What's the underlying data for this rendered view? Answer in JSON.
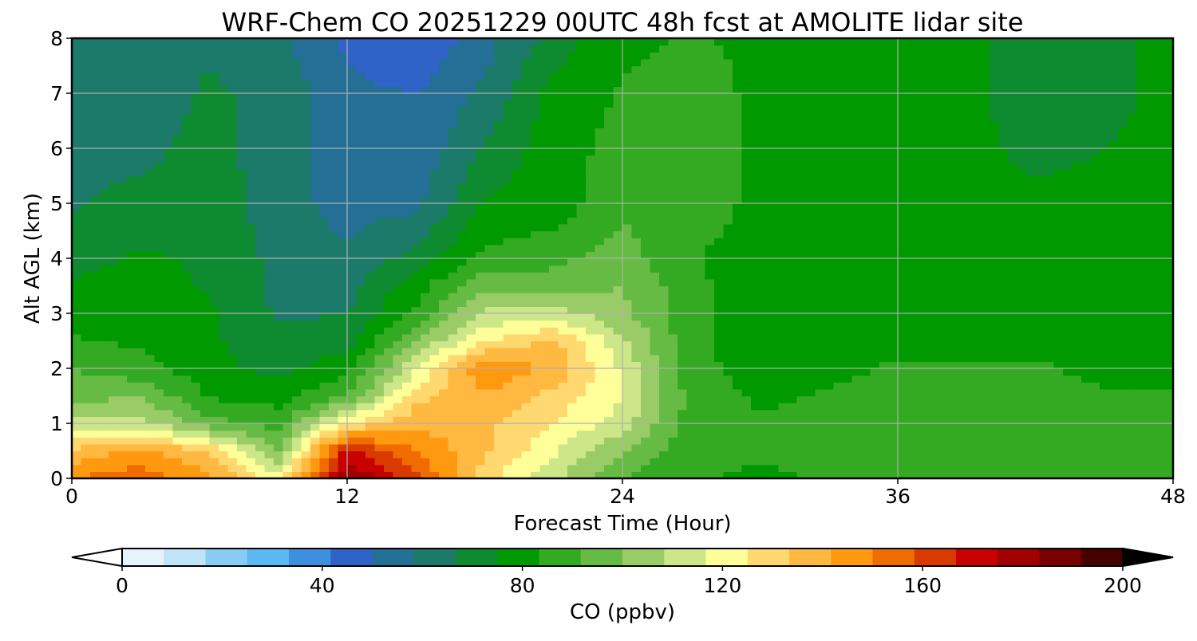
{
  "chart_data": {
    "type": "heatmap",
    "title": "WRF-Chem CO  20251229 00UTC 48h fcst at AMOLITE lidar site",
    "xlabel": "Forecast Time (Hour)",
    "ylabel": "Alt AGL (km)",
    "xlim": [
      0,
      48
    ],
    "ylim": [
      0,
      8
    ],
    "x_ticks": [
      0,
      12,
      24,
      36,
      48
    ],
    "y_ticks": [
      0,
      1,
      2,
      3,
      4,
      5,
      6,
      7,
      8
    ],
    "grid": true,
    "x_hours": [
      0,
      3,
      6,
      9,
      12,
      15,
      18,
      21,
      24,
      27,
      30,
      33,
      36,
      39,
      42,
      45,
      48
    ],
    "y_km": [
      0,
      0.5,
      1,
      1.5,
      2,
      2.5,
      3,
      3.5,
      4,
      5,
      6,
      7,
      8
    ],
    "values": [
      [
        150,
        155,
        145,
        120,
        185,
        160,
        128,
        110,
        92,
        84,
        82,
        84,
        85,
        86,
        86,
        85,
        92
      ],
      [
        135,
        145,
        132,
        100,
        170,
        150,
        135,
        118,
        100,
        86,
        84,
        86,
        88,
        89,
        90,
        88,
        88
      ],
      [
        110,
        112,
        95,
        88,
        125,
        140,
        135,
        125,
        112,
        88,
        84,
        86,
        88,
        89,
        90,
        88,
        86
      ],
      [
        96,
        100,
        82,
        80,
        92,
        130,
        140,
        130,
        118,
        88,
        82,
        84,
        86,
        86,
        86,
        84,
        84
      ],
      [
        92,
        86,
        78,
        72,
        80,
        115,
        150,
        140,
        115,
        86,
        80,
        82,
        84,
        84,
        84,
        82,
        82
      ],
      [
        84,
        82,
        76,
        70,
        72,
        100,
        125,
        135,
        110,
        86,
        78,
        80,
        82,
        82,
        82,
        80,
        80
      ],
      [
        80,
        80,
        76,
        66,
        66,
        85,
        110,
        112,
        102,
        86,
        77,
        78,
        80,
        80,
        80,
        78,
        78
      ],
      [
        76,
        78,
        74,
        64,
        64,
        80,
        98,
        95,
        100,
        86,
        78,
        78,
        78,
        78,
        78,
        78,
        78
      ],
      [
        72,
        76,
        74,
        64,
        60,
        70,
        85,
        90,
        95,
        84,
        78,
        78,
        77,
        77,
        77,
        77,
        76
      ],
      [
        66,
        70,
        72,
        62,
        55,
        56,
        76,
        78,
        90,
        90,
        80,
        78,
        76,
        76,
        76,
        76,
        76
      ],
      [
        62,
        64,
        70,
        62,
        54,
        52,
        68,
        80,
        86,
        88,
        82,
        78,
        76,
        76,
        74,
        75,
        76
      ],
      [
        62,
        62,
        68,
        64,
        52,
        50,
        60,
        78,
        84,
        86,
        82,
        80,
        78,
        76,
        73,
        74,
        76
      ],
      [
        62,
        60,
        65,
        60,
        48,
        42,
        55,
        70,
        82,
        84,
        82,
        80,
        78,
        76,
        73,
        74,
        76
      ]
    ],
    "colorbar": {
      "label": "CO  (ppbv)",
      "min": 0,
      "max": 200,
      "ticks": [
        0,
        40,
        80,
        120,
        160,
        200
      ],
      "extend": "both",
      "colors": [
        "#ffffff",
        "#e6f3fb",
        "#bfe3f7",
        "#88ccf4",
        "#5ab8f2",
        "#3f8fe0",
        "#2f63c8",
        "#246f96",
        "#1b7a6a",
        "#0e8a30",
        "#009900",
        "#34aa22",
        "#66bb44",
        "#99cc66",
        "#cce688",
        "#ffff99",
        "#ffd870",
        "#ffb840",
        "#ff9a10",
        "#f06b00",
        "#d83a00",
        "#c80000",
        "#a00000",
        "#780000",
        "#460000",
        "#000000"
      ]
    }
  }
}
